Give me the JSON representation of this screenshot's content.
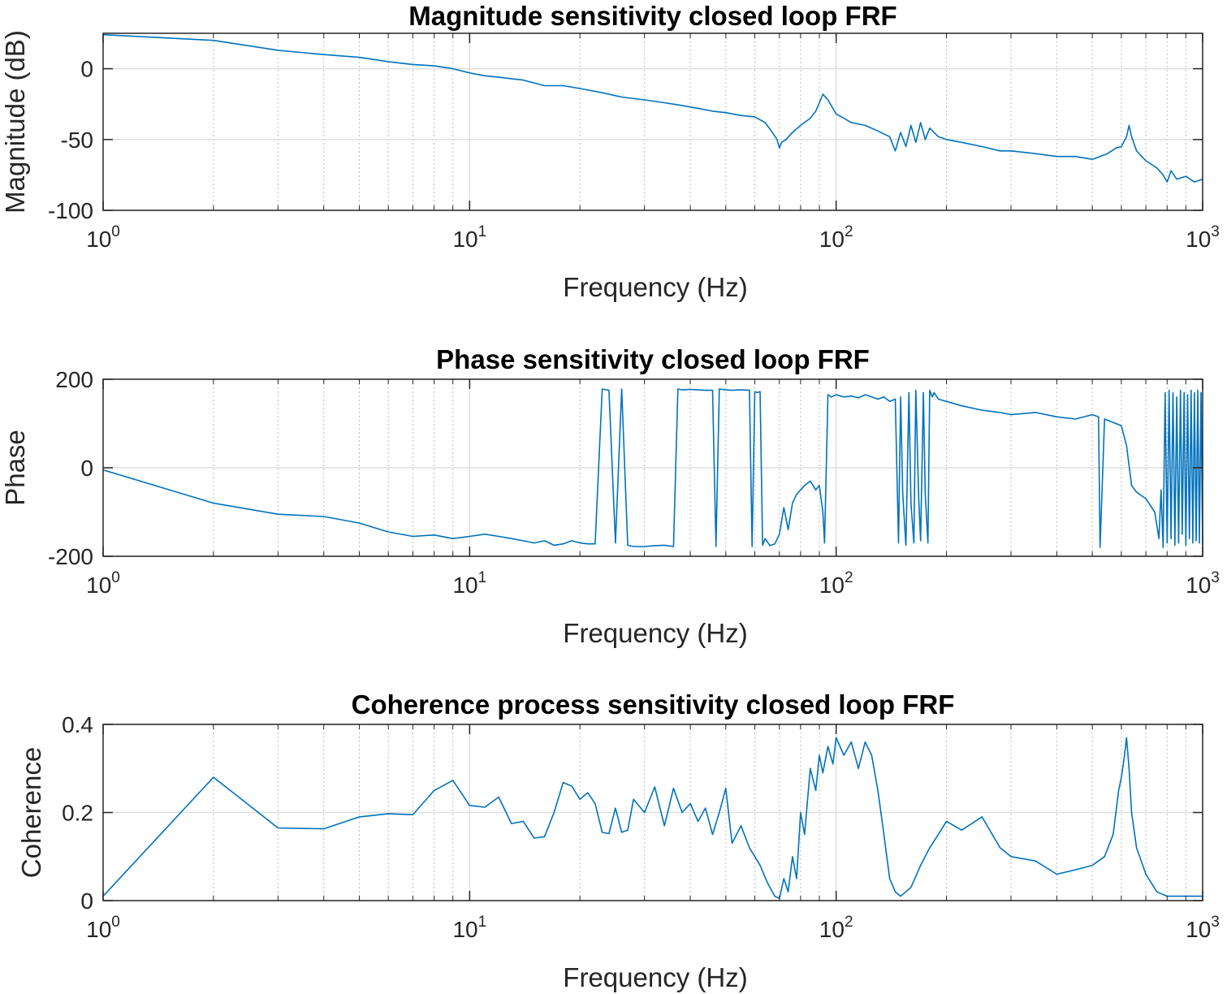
{
  "figure": {
    "background": "#ffffff",
    "line_color": "#0072bd",
    "grid_color": "#dfdfdf",
    "axis_color": "#262626"
  },
  "chart_data": [
    {
      "id": "magnitude",
      "type": "line",
      "title": "Magnitude sensitivity closed loop FRF",
      "xlabel": "Frequency (Hz)",
      "ylabel": "Magnitude (dB)",
      "xscale": "log",
      "xlim": [
        1,
        1000
      ],
      "ylim": [
        -100,
        25
      ],
      "yticks": [
        -100,
        -50,
        0
      ],
      "ytick_labels": [
        "-100",
        "-50",
        "0"
      ],
      "xtick_labels": [
        {
          "base": "10",
          "exp": "0"
        },
        {
          "base": "10",
          "exp": "1"
        },
        {
          "base": "10",
          "exp": "2"
        },
        {
          "base": "10",
          "exp": "3"
        }
      ],
      "grid": true,
      "series": [
        {
          "x": [
            1,
            2,
            3,
            4,
            5,
            6,
            7,
            8,
            9,
            10,
            11,
            12,
            14,
            16,
            18,
            20,
            23,
            26,
            30,
            34,
            38,
            42,
            46,
            50,
            55,
            60,
            64,
            67,
            69,
            70,
            71,
            73,
            76,
            80,
            85,
            88,
            90,
            92,
            95,
            100,
            105,
            110,
            120,
            130,
            140,
            145,
            150,
            155,
            160,
            165,
            170,
            175,
            180,
            190,
            200,
            220,
            250,
            280,
            300,
            350,
            400,
            450,
            500,
            550,
            580,
            600,
            620,
            630,
            640,
            660,
            700,
            750,
            780,
            800,
            820,
            850,
            900,
            950,
            1000
          ],
          "y": [
            24,
            20,
            13,
            10,
            8,
            5,
            3,
            2,
            0,
            -3,
            -5,
            -6,
            -8,
            -12,
            -12,
            -14,
            -17,
            -20,
            -22,
            -24,
            -26,
            -28,
            -30,
            -31,
            -33,
            -34,
            -38,
            -45,
            -50,
            -56,
            -52,
            -50,
            -45,
            -40,
            -35,
            -30,
            -24,
            -18,
            -22,
            -32,
            -35,
            -38,
            -40,
            -44,
            -48,
            -58,
            -45,
            -55,
            -40,
            -52,
            -38,
            -50,
            -42,
            -48,
            -50,
            -52,
            -55,
            -58,
            -58,
            -60,
            -62,
            -62,
            -64,
            -60,
            -56,
            -55,
            -48,
            -40,
            -48,
            -58,
            -65,
            -70,
            -75,
            -80,
            -72,
            -78,
            -76,
            -80,
            -78
          ]
        }
      ]
    },
    {
      "id": "phase",
      "type": "line",
      "title": "Phase sensitivity closed loop FRF",
      "xlabel": "Frequency (Hz)",
      "ylabel": "Phase",
      "xscale": "log",
      "xlim": [
        1,
        1000
      ],
      "ylim": [
        -200,
        200
      ],
      "yticks": [
        -200,
        0,
        200
      ],
      "ytick_labels": [
        "-200",
        "0",
        "200"
      ],
      "xtick_labels": [
        {
          "base": "10",
          "exp": "0"
        },
        {
          "base": "10",
          "exp": "1"
        },
        {
          "base": "10",
          "exp": "2"
        },
        {
          "base": "10",
          "exp": "3"
        }
      ],
      "grid": true,
      "series": [
        {
          "x": [
            1,
            2,
            3,
            4,
            5,
            6,
            7,
            8,
            9,
            10,
            11,
            12,
            13,
            14,
            15,
            16,
            17,
            18,
            19,
            20,
            21,
            22,
            23,
            24,
            25,
            26,
            27,
            28,
            30,
            32,
            34,
            36,
            37,
            38,
            40,
            42,
            44,
            46,
            47,
            48,
            50,
            52,
            55,
            58,
            59,
            60,
            61,
            62,
            63,
            64,
            66,
            68,
            70,
            72,
            74,
            76,
            78,
            80,
            82,
            85,
            88,
            90,
            92,
            93,
            95,
            97,
            100,
            105,
            110,
            115,
            120,
            125,
            130,
            135,
            140,
            145,
            148,
            150,
            152,
            155,
            158,
            160,
            163,
            165,
            168,
            170,
            173,
            175,
            178,
            180,
            183,
            185,
            190,
            200,
            220,
            250,
            280,
            300,
            350,
            400,
            450,
            500,
            520,
            525,
            540,
            580,
            600,
            620,
            640,
            660,
            700,
            740,
            760,
            770,
            780,
            790,
            800,
            810,
            820,
            830,
            840,
            850,
            860,
            870,
            880,
            890,
            900,
            910,
            920,
            930,
            940,
            950,
            960,
            970,
            980,
            990,
            1000
          ],
          "y": [
            -5,
            -80,
            -105,
            -110,
            -125,
            -145,
            -155,
            -152,
            -160,
            -155,
            -150,
            -155,
            -160,
            -165,
            -170,
            -165,
            -175,
            -172,
            -165,
            -170,
            -172,
            -172,
            178,
            175,
            -170,
            178,
            -175,
            -178,
            -178,
            -176,
            -175,
            -178,
            178,
            176,
            177,
            176,
            175,
            175,
            -178,
            178,
            176,
            175,
            176,
            175,
            -178,
            172,
            170,
            172,
            -175,
            -160,
            -176,
            -172,
            -150,
            -90,
            -140,
            -80,
            -60,
            -50,
            -40,
            -30,
            -50,
            -40,
            -100,
            -170,
            165,
            160,
            165,
            160,
            162,
            158,
            165,
            160,
            155,
            160,
            150,
            155,
            -170,
            160,
            -60,
            -175,
            170,
            -80,
            -170,
            175,
            -70,
            -165,
            170,
            -60,
            -170,
            175,
            160,
            170,
            155,
            150,
            140,
            130,
            125,
            120,
            125,
            115,
            110,
            120,
            115,
            -180,
            110,
            100,
            95,
            50,
            -40,
            -55,
            -70,
            -100,
            -160,
            -50,
            -180,
            170,
            -170,
            175,
            -160,
            170,
            -175,
            160,
            -170,
            175,
            -150,
            170,
            -175,
            165,
            -160,
            175,
            -170,
            170,
            -165,
            175,
            -170,
            170,
            -175
          ]
        }
      ]
    },
    {
      "id": "coherence",
      "type": "line",
      "title": "Coherence process sensitivity closed loop FRF",
      "xlabel": "Frequency (Hz)",
      "ylabel": "Coherence",
      "xscale": "log",
      "xlim": [
        1,
        1000
      ],
      "ylim": [
        0,
        0.4
      ],
      "yticks": [
        0,
        0.2,
        0.4
      ],
      "ytick_labels": [
        "0",
        "0.2",
        "0.4"
      ],
      "xtick_labels": [
        {
          "base": "10",
          "exp": "0"
        },
        {
          "base": "10",
          "exp": "1"
        },
        {
          "base": "10",
          "exp": "2"
        },
        {
          "base": "10",
          "exp": "3"
        }
      ],
      "grid": true,
      "series": [
        {
          "x": [
            1,
            2,
            3,
            4,
            5,
            6,
            7,
            8,
            9,
            10,
            11,
            12,
            13,
            14,
            15,
            16,
            17,
            18,
            19,
            20,
            21,
            22,
            23,
            24,
            25,
            26,
            27,
            28,
            30,
            32,
            34,
            36,
            38,
            40,
            42,
            44,
            46,
            48,
            50,
            52,
            55,
            58,
            62,
            65,
            68,
            70,
            72,
            74,
            76,
            78,
            80,
            82,
            85,
            88,
            90,
            92,
            95,
            98,
            100,
            105,
            110,
            115,
            120,
            125,
            130,
            135,
            140,
            145,
            150,
            160,
            170,
            180,
            190,
            200,
            220,
            250,
            280,
            300,
            350,
            400,
            450,
            500,
            540,
            570,
            590,
            600,
            610,
            620,
            630,
            640,
            660,
            700,
            750,
            800,
            900,
            1000
          ],
          "y": [
            0.01,
            0.28,
            0.165,
            0.163,
            0.19,
            0.197,
            0.195,
            0.25,
            0.273,
            0.216,
            0.212,
            0.235,
            0.175,
            0.18,
            0.142,
            0.145,
            0.2,
            0.268,
            0.26,
            0.23,
            0.245,
            0.22,
            0.155,
            0.152,
            0.21,
            0.155,
            0.16,
            0.23,
            0.2,
            0.258,
            0.17,
            0.255,
            0.2,
            0.22,
            0.18,
            0.21,
            0.15,
            0.2,
            0.255,
            0.13,
            0.17,
            0.12,
            0.08,
            0.04,
            0.01,
            0.005,
            0.05,
            0.02,
            0.1,
            0.05,
            0.2,
            0.15,
            0.3,
            0.25,
            0.33,
            0.29,
            0.35,
            0.31,
            0.37,
            0.33,
            0.36,
            0.3,
            0.36,
            0.33,
            0.25,
            0.15,
            0.05,
            0.02,
            0.01,
            0.03,
            0.08,
            0.12,
            0.15,
            0.18,
            0.16,
            0.19,
            0.12,
            0.1,
            0.09,
            0.06,
            0.07,
            0.08,
            0.1,
            0.15,
            0.25,
            0.28,
            0.32,
            0.37,
            0.3,
            0.2,
            0.12,
            0.06,
            0.02,
            0.01,
            0.01,
            0.01
          ]
        }
      ]
    }
  ]
}
